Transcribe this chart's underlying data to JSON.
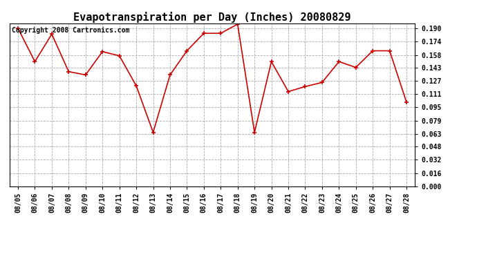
{
  "title": "Evapotranspiration per Day (Inches) 20080829",
  "copyright": "Copyright 2008 Cartronics.com",
  "x_labels": [
    "08/05",
    "08/06",
    "08/07",
    "08/08",
    "08/09",
    "08/10",
    "08/11",
    "08/12",
    "08/13",
    "08/14",
    "08/15",
    "08/16",
    "08/17",
    "08/18",
    "08/19",
    "08/20",
    "08/21",
    "08/22",
    "08/23",
    "08/24",
    "08/25",
    "08/26",
    "08/27",
    "08/28"
  ],
  "y_values": [
    0.19,
    0.15,
    0.183,
    0.138,
    0.134,
    0.162,
    0.157,
    0.121,
    0.065,
    0.134,
    0.163,
    0.184,
    0.184,
    0.195,
    0.065,
    0.15,
    0.114,
    0.12,
    0.125,
    0.15,
    0.143,
    0.163,
    0.163,
    0.101
  ],
  "yticks": [
    0.0,
    0.016,
    0.032,
    0.048,
    0.063,
    0.079,
    0.095,
    0.111,
    0.127,
    0.143,
    0.158,
    0.174,
    0.19
  ],
  "ylim": [
    0.0,
    0.196
  ],
  "line_color": "#cc0000",
  "marker": "+",
  "bg_color": "#ffffff",
  "grid_color": "#aaaaaa",
  "title_fontsize": 11,
  "tick_fontsize": 7,
  "copyright_fontsize": 7
}
